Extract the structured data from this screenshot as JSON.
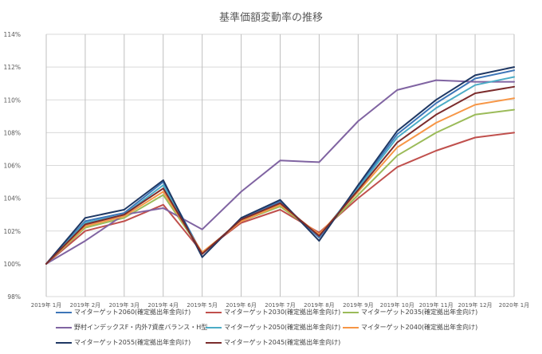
{
  "chart_data": {
    "type": "line",
    "title": "基準価額変動率の推移",
    "xlabel": "",
    "ylabel": "",
    "ylim": [
      0.98,
      1.14
    ],
    "yticks": [
      0.98,
      1.0,
      1.02,
      1.04,
      1.06,
      1.08,
      1.1,
      1.12,
      1.14
    ],
    "ytick_labels": [
      "98%",
      "100%",
      "102%",
      "104%",
      "106%",
      "108%",
      "110%",
      "112%",
      "114%"
    ],
    "categories": [
      "2019年 1月",
      "2019年 2月",
      "2019年 3月",
      "2019年 4月",
      "2019年 5月",
      "2019年 6月",
      "2019年 7月",
      "2019年 8月",
      "2019年 9月",
      "2019年 10月",
      "2019年 11月",
      "2019年 12月",
      "2020年 1月"
    ],
    "grid": "horizontal and vertical",
    "legend_position": "bottom",
    "series": [
      {
        "name": "マイターゲット2060(確定拠出年金向け)",
        "color": "#3d76b8",
        "values": [
          1.0,
          1.026,
          1.031,
          1.05,
          1.006,
          1.027,
          1.038,
          1.016,
          1.047,
          1.079,
          1.098,
          1.113,
          1.118
        ]
      },
      {
        "name": "マイターゲット2030(確定拠出年金向け)",
        "color": "#c0504d",
        "values": [
          1.0,
          1.02,
          1.026,
          1.036,
          1.007,
          1.025,
          1.033,
          1.019,
          1.04,
          1.059,
          1.069,
          1.077,
          1.08
        ]
      },
      {
        "name": "マイターゲット2035(確定拠出年金向け)",
        "color": "#9bbb59",
        "values": [
          1.0,
          1.022,
          1.028,
          1.042,
          1.007,
          1.026,
          1.035,
          1.018,
          1.042,
          1.066,
          1.08,
          1.091,
          1.094
        ]
      },
      {
        "name": "野村インデックスF・内外7資産バランス・H型",
        "color": "#8064a2",
        "values": [
          1.0,
          1.014,
          1.03,
          1.034,
          1.021,
          1.044,
          1.063,
          1.062,
          1.087,
          1.106,
          1.112,
          1.111,
          1.111
        ]
      },
      {
        "name": "マイターゲット2050(確定拠出年金向け)",
        "color": "#4bacc6",
        "values": [
          1.0,
          1.025,
          1.03,
          1.048,
          1.006,
          1.027,
          1.037,
          1.017,
          1.046,
          1.077,
          1.095,
          1.109,
          1.114
        ]
      },
      {
        "name": "マイターゲット2040(確定拠出年金向け)",
        "color": "#f79646",
        "values": [
          1.0,
          1.023,
          1.029,
          1.044,
          1.007,
          1.026,
          1.036,
          1.018,
          1.044,
          1.071,
          1.086,
          1.097,
          1.101
        ]
      },
      {
        "name": "マイターゲット2055(確定拠出年金向け)",
        "color": "#1f3864",
        "values": [
          1.0,
          1.028,
          1.033,
          1.051,
          1.004,
          1.028,
          1.039,
          1.014,
          1.048,
          1.081,
          1.1,
          1.115,
          1.12
        ]
      },
      {
        "name": "マイターゲット2045(確定拠出年金向け)",
        "color": "#7b2c2c",
        "values": [
          1.0,
          1.024,
          1.03,
          1.046,
          1.006,
          1.027,
          1.037,
          1.017,
          1.045,
          1.074,
          1.091,
          1.104,
          1.108
        ]
      }
    ]
  }
}
